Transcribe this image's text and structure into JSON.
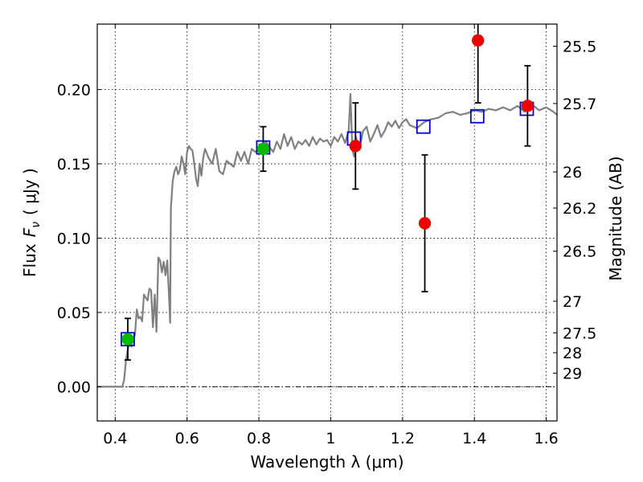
{
  "chart_data": {
    "type": "scatter",
    "xlabel": "Wavelength  λ (μm)",
    "ylabel": "Flux  F_ν  ( μJy )",
    "ylabel_parts": {
      "a": "Flux",
      "b": "F",
      "sub": "ν",
      "c": "( μJy )"
    },
    "y2label": "Magnitude (AB)",
    "xlim": [
      0.35,
      1.63
    ],
    "ylim": [
      -0.023,
      0.244
    ],
    "x_ticks": [
      0.4,
      0.6,
      0.8,
      1.0,
      1.2,
      1.4,
      1.6
    ],
    "x_tick_labels": [
      "0.4",
      "0.6",
      "0.8",
      "1",
      "1.2",
      "1.4",
      "1.6"
    ],
    "y_ticks": [
      0.0,
      0.05,
      0.1,
      0.15,
      0.2
    ],
    "y_tick_labels": [
      "0.00",
      "0.05",
      "0.10",
      "0.15",
      "0.20"
    ],
    "y2_ticks": [
      25.5,
      25.7,
      26,
      26.2,
      26.5,
      27,
      27.5,
      28,
      29
    ],
    "y2_tick_labels": [
      "25.5",
      "25.7",
      "26",
      "26.2",
      "26.5",
      "27",
      "27.5",
      "28",
      "29"
    ],
    "grid": true,
    "colors": {
      "model": "#808080",
      "green": "#00bb00",
      "red": "#ee0000",
      "box": "#0000cc",
      "zero_line": "#000000"
    },
    "series": [
      {
        "kind": "line",
        "x": [
          0.35,
          0.41,
          0.42,
          0.425,
          0.43,
          0.435,
          0.44,
          0.445,
          0.45,
          0.455,
          0.46,
          0.465,
          0.47,
          0.475,
          0.48,
          0.485,
          0.49,
          0.495,
          0.5,
          0.505,
          0.51,
          0.515,
          0.52,
          0.525,
          0.53,
          0.535,
          0.54,
          0.545,
          0.55,
          0.553,
          0.555,
          0.56,
          0.565,
          0.57,
          0.575,
          0.58,
          0.585,
          0.59,
          0.595,
          0.6,
          0.605,
          0.61,
          0.615,
          0.62,
          0.625,
          0.63,
          0.635,
          0.64,
          0.645,
          0.65,
          0.66,
          0.67,
          0.68,
          0.69,
          0.7,
          0.71,
          0.72,
          0.73,
          0.74,
          0.75,
          0.76,
          0.77,
          0.78,
          0.79,
          0.8,
          0.81,
          0.82,
          0.83,
          0.84,
          0.85,
          0.86,
          0.87,
          0.88,
          0.89,
          0.9,
          0.91,
          0.92,
          0.93,
          0.94,
          0.95,
          0.96,
          0.97,
          0.98,
          0.99,
          1.0,
          1.01,
          1.02,
          1.03,
          1.04,
          1.05,
          1.055,
          1.06,
          1.065,
          1.07,
          1.08,
          1.09,
          1.1,
          1.11,
          1.12,
          1.13,
          1.14,
          1.15,
          1.16,
          1.17,
          1.18,
          1.19,
          1.2,
          1.21,
          1.22,
          1.24,
          1.26,
          1.28,
          1.3,
          1.32,
          1.34,
          1.36,
          1.38,
          1.4,
          1.42,
          1.44,
          1.46,
          1.48,
          1.5,
          1.52,
          1.54,
          1.56,
          1.58,
          1.6,
          1.62,
          1.63
        ],
        "y": [
          0.0,
          0.0,
          0.0,
          0.005,
          0.018,
          0.025,
          0.03,
          0.027,
          0.032,
          0.035,
          0.052,
          0.046,
          0.047,
          0.044,
          0.062,
          0.06,
          0.058,
          0.066,
          0.065,
          0.04,
          0.062,
          0.037,
          0.087,
          0.085,
          0.077,
          0.084,
          0.075,
          0.085,
          0.06,
          0.043,
          0.12,
          0.138,
          0.145,
          0.148,
          0.143,
          0.146,
          0.155,
          0.15,
          0.143,
          0.158,
          0.162,
          0.16,
          0.159,
          0.15,
          0.14,
          0.135,
          0.15,
          0.142,
          0.154,
          0.16,
          0.154,
          0.15,
          0.16,
          0.145,
          0.143,
          0.152,
          0.15,
          0.148,
          0.158,
          0.152,
          0.158,
          0.15,
          0.16,
          0.158,
          0.16,
          0.162,
          0.165,
          0.161,
          0.158,
          0.165,
          0.16,
          0.17,
          0.162,
          0.168,
          0.16,
          0.165,
          0.163,
          0.166,
          0.162,
          0.168,
          0.163,
          0.167,
          0.165,
          0.166,
          0.162,
          0.168,
          0.165,
          0.17,
          0.164,
          0.172,
          0.197,
          0.16,
          0.155,
          0.168,
          0.16,
          0.172,
          0.175,
          0.165,
          0.17,
          0.176,
          0.168,
          0.172,
          0.178,
          0.175,
          0.179,
          0.174,
          0.178,
          0.18,
          0.176,
          0.174,
          0.178,
          0.18,
          0.181,
          0.184,
          0.185,
          0.183,
          0.184,
          0.186,
          0.185,
          0.187,
          0.186,
          0.188,
          0.186,
          0.189,
          0.185,
          0.19,
          0.186,
          0.188,
          0.185,
          0.183
        ]
      },
      {
        "kind": "boxes",
        "x": [
          0.435,
          0.812,
          1.065,
          1.258,
          1.408,
          1.546
        ],
        "y": [
          0.032,
          0.161,
          0.167,
          0.175,
          0.182,
          0.187
        ]
      },
      {
        "kind": "green_points",
        "x": [
          0.435,
          0.812
        ],
        "y": [
          0.032,
          0.16
        ],
        "yerr": [
          0.014,
          0.015
        ]
      },
      {
        "kind": "red_points",
        "x": [
          1.069,
          1.262,
          1.41,
          1.548
        ],
        "y": [
          0.162,
          0.11,
          0.233,
          0.189
        ],
        "yerr": [
          0.029,
          0.046,
          0.042,
          0.027
        ]
      }
    ]
  }
}
